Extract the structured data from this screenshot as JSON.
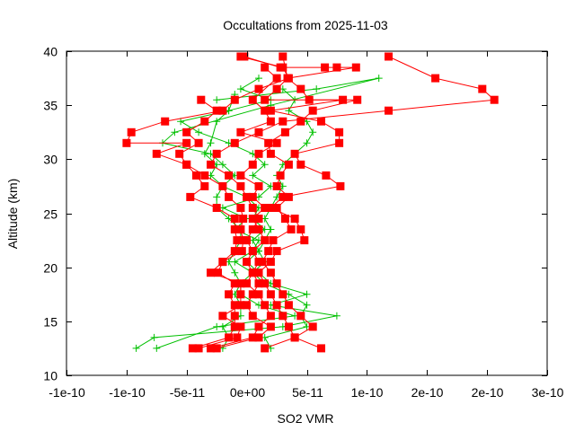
{
  "chart_data": {
    "type": "line",
    "title": "Occultations from 2025-11-03",
    "xlabel": "SO2 VMR",
    "ylabel": "Altitude (km)",
    "xlim": [
      -1.5e-10,
      2.5e-10
    ],
    "ylim": [
      10,
      40
    ],
    "x_ticks": [
      -1.5e-10,
      -1e-10,
      -5e-11,
      0,
      5e-11,
      1e-10,
      1.5e-10,
      2e-10,
      2.5e-10
    ],
    "x_tick_labels": [
      "-1e-10",
      "-1e-10",
      "-5e-11",
      "0e+00",
      "5e-11",
      "1e-10",
      "2e-10",
      "2e-10",
      "3e-10"
    ],
    "y_ticks": [
      10,
      15,
      20,
      25,
      30,
      35,
      40
    ],
    "y_tick_labels": [
      "10",
      "15",
      "20",
      "25",
      "30",
      "35",
      "40"
    ],
    "grid": false,
    "legend": null,
    "series": [
      {
        "name": "profile-red-1",
        "color": "#ff0000",
        "marker": "square",
        "points": [
          [
            1.18e-10,
            39.5
          ],
          [
            1.57e-10,
            37.5
          ],
          [
            1.96e-10,
            36.5
          ],
          [
            2.06e-10,
            35.5
          ],
          [
            1.18e-10,
            34.5
          ],
          [
            3e-11,
            33.5
          ],
          [
            1e-11,
            32.5
          ],
          [
            -1e-11,
            31.5
          ],
          [
            -2.5e-11,
            30.5
          ],
          [
            -3e-11,
            29.5
          ],
          [
            -1.5e-11,
            28.5
          ],
          [
            -5e-12,
            27.5
          ],
          [
            0,
            26.5
          ],
          [
            5e-12,
            25.5
          ],
          [
            1e-11,
            24.5
          ],
          [
            5e-12,
            23.5
          ],
          [
            0,
            22.5
          ],
          [
            5e-12,
            21.5
          ],
          [
            1e-11,
            20.5
          ],
          [
            5e-12,
            19.5
          ],
          [
            0,
            18.5
          ],
          [
            1e-11,
            17.5
          ],
          [
            1.5e-11,
            16.5
          ],
          [
            2e-11,
            15.5
          ],
          [
            1e-11,
            14.5
          ],
          [
            5e-12,
            13.5
          ],
          [
            -3e-11,
            12.5
          ]
        ]
      },
      {
        "name": "profile-red-2",
        "color": "#ff0000",
        "marker": "square",
        "points": [
          [
            -2e-12,
            39.5
          ],
          [
            2.8e-11,
            38.5
          ],
          [
            6.5e-11,
            38.5
          ],
          [
            7.5e-11,
            38.5
          ],
          [
            9.1e-11,
            38.5
          ],
          [
            3.4e-11,
            37.5
          ],
          [
            2.5e-11,
            36.5
          ],
          [
            1.5e-11,
            35.5
          ],
          [
            8e-11,
            35.5
          ],
          [
            2e-11,
            34.5
          ],
          [
            6.2e-11,
            33.5
          ],
          [
            7.7e-11,
            32.5
          ],
          [
            7.7e-11,
            31.5
          ],
          [
            4e-11,
            30.5
          ],
          [
            4.5e-11,
            29.5
          ],
          [
            6.6e-11,
            28.5
          ],
          [
            7.8e-11,
            27.5
          ],
          [
            3e-11,
            26.5
          ],
          [
            2e-11,
            25.5
          ],
          [
            4e-11,
            24.5
          ],
          [
            4.5e-11,
            23.5
          ],
          [
            4.8e-11,
            22.5
          ],
          [
            2.5e-11,
            21.5
          ],
          [
            2e-11,
            20.5
          ],
          [
            1e-11,
            19.5
          ],
          [
            1.5e-11,
            18.5
          ],
          [
            2e-11,
            17.5
          ],
          [
            2.5e-11,
            16.5
          ],
          [
            3e-11,
            15.5
          ],
          [
            3.5e-11,
            14.5
          ],
          [
            4e-11,
            13.5
          ],
          [
            6.2e-11,
            12.5
          ]
        ]
      },
      {
        "name": "profile-red-3",
        "color": "#ff0000",
        "marker": "square",
        "points": [
          [
            -5e-12,
            39.5
          ],
          [
            3e-11,
            38.5
          ],
          [
            3.5e-11,
            37.5
          ],
          [
            1e-11,
            36.5
          ],
          [
            -1e-11,
            35.5
          ],
          [
            -2e-11,
            34.5
          ],
          [
            -6.8e-11,
            33.5
          ],
          [
            -9.6e-11,
            32.5
          ],
          [
            -1e-10,
            31.5
          ],
          [
            -5e-11,
            31.5
          ],
          [
            -7.5e-11,
            30.5
          ],
          [
            -5e-11,
            29.5
          ],
          [
            -4.2e-11,
            28.5
          ],
          [
            -3.5e-11,
            27.5
          ],
          [
            -4.7e-11,
            26.5
          ],
          [
            -2.5e-11,
            25.5
          ],
          [
            -1e-11,
            24.5
          ],
          [
            -1e-11,
            23.5
          ],
          [
            -8e-12,
            22.5
          ],
          [
            -1e-11,
            21.5
          ],
          [
            -2e-11,
            20.5
          ],
          [
            -2.4e-11,
            19.5
          ],
          [
            -1e-11,
            18.5
          ],
          [
            -1.5e-11,
            17.5
          ],
          [
            -1e-11,
            16.5
          ],
          [
            -1e-11,
            15.5
          ],
          [
            -1e-11,
            14.5
          ],
          [
            -1.5e-11,
            13.5
          ],
          [
            -4.5e-11,
            12.5
          ]
        ]
      },
      {
        "name": "profile-red-4",
        "color": "#ff0000",
        "marker": "square",
        "points": [
          [
            3e-11,
            39.5
          ],
          [
            3.4e-11,
            37.5
          ],
          [
            4.5e-11,
            36.5
          ],
          [
            5.2e-11,
            35.5
          ],
          [
            9.2e-11,
            35.5
          ],
          [
            5.5e-11,
            34.5
          ],
          [
            4.5e-11,
            33.5
          ],
          [
            3.2e-11,
            32.5
          ],
          [
            1.8e-11,
            31.5
          ],
          [
            2e-11,
            30.5
          ],
          [
            3.5e-11,
            29.5
          ],
          [
            2.8e-11,
            28.5
          ],
          [
            2.5e-11,
            27.5
          ],
          [
            3.5e-11,
            26.5
          ],
          [
            2.5e-11,
            25.5
          ],
          [
            3.2e-11,
            24.5
          ],
          [
            3.7e-11,
            23.5
          ],
          [
            2.2e-11,
            22.5
          ],
          [
            1.8e-11,
            21.5
          ],
          [
            1.3e-11,
            20.5
          ],
          [
            2e-11,
            19.5
          ],
          [
            2.5e-11,
            18.5
          ],
          [
            3e-11,
            17.5
          ],
          [
            3.5e-11,
            16.5
          ],
          [
            4.5e-11,
            15.5
          ],
          [
            5.5e-11,
            14.5
          ],
          [
            4e-11,
            13.5
          ],
          [
            1.5e-11,
            12.5
          ]
        ]
      },
      {
        "name": "profile-red-5",
        "color": "#ff0000",
        "marker": "square",
        "points": [
          [
            -3.8e-11,
            35.5
          ],
          [
            -2.5e-11,
            34.5
          ],
          [
            -3.5e-11,
            33.5
          ],
          [
            -5e-11,
            32.5
          ],
          [
            -4e-11,
            31.5
          ],
          [
            -5.6e-11,
            30.5
          ],
          [
            -5e-11,
            29.5
          ],
          [
            -3.5e-11,
            28.5
          ],
          [
            -2e-11,
            27.5
          ],
          [
            -1.5e-11,
            26.5
          ],
          [
            -5e-12,
            25.5
          ],
          [
            -3e-12,
            24.5
          ],
          [
            -5e-12,
            23.5
          ],
          [
            -3e-12,
            22.5
          ],
          [
            -4e-12,
            21.5
          ],
          [
            -2e-11,
            20.5
          ],
          [
            -3e-11,
            19.5
          ],
          [
            -5e-12,
            18.5
          ],
          [
            -5e-12,
            17.5
          ],
          [
            -5e-12,
            16.5
          ],
          [
            -2e-11,
            15.5
          ],
          [
            -5e-12,
            14.5
          ],
          [
            -8e-12,
            13.5
          ],
          [
            -4e-11,
            12.5
          ]
        ]
      },
      {
        "name": "profile-red-6",
        "color": "#ff0000",
        "marker": "square",
        "points": [
          [
            1.5e-11,
            38.5
          ],
          [
            2.5e-11,
            37.5
          ],
          [
            5e-12,
            35.5
          ],
          [
            1.5e-11,
            34.5
          ],
          [
            2e-11,
            33.5
          ],
          [
            -5e-12,
            32.5
          ],
          [
            2.5e-11,
            31.5
          ],
          [
            1e-11,
            30.5
          ],
          [
            5e-12,
            29.5
          ],
          [
            -5e-12,
            28.5
          ],
          [
            1e-11,
            27.5
          ],
          [
            5e-12,
            26.5
          ],
          [
            1.5e-11,
            25.5
          ],
          [
            5e-12,
            24.5
          ],
          [
            1e-11,
            23.5
          ],
          [
            1.5e-11,
            22.5
          ],
          [
            5e-12,
            21.5
          ],
          [
            0,
            20.5
          ],
          [
            5e-12,
            19.5
          ],
          [
            1e-11,
            18.5
          ],
          [
            5e-12,
            17.5
          ],
          [
            0,
            16.5
          ],
          [
            5e-12,
            15.5
          ],
          [
            2e-11,
            14.5
          ],
          [
            1e-11,
            13.5
          ],
          [
            -2.5e-11,
            12.5
          ]
        ]
      },
      {
        "name": "profile-green-1",
        "color": "#00c000",
        "marker": "plus",
        "points": [
          [
            -2.5e-11,
            35.5
          ],
          [
            5.8e-11,
            36.5
          ],
          [
            1.1e-10,
            37.5
          ],
          [
            2e-11,
            35.0
          ],
          [
            -6e-11,
            32.5
          ],
          [
            -7e-11,
            31.5
          ],
          [
            -3e-11,
            30.5
          ],
          [
            -2e-11,
            29.5
          ],
          [
            -1e-11,
            28.5
          ],
          [
            -2e-11,
            27.5
          ],
          [
            0,
            26.5
          ],
          [
            1e-11,
            25.5
          ],
          [
            5e-12,
            24.5
          ],
          [
            1.5e-11,
            23.5
          ],
          [
            5e-12,
            22.5
          ],
          [
            1e-11,
            21.5
          ],
          [
            0,
            20.5
          ],
          [
            1e-11,
            19.5
          ],
          [
            2e-11,
            18.5
          ],
          [
            5e-11,
            17.5
          ],
          [
            2e-11,
            16.5
          ],
          [
            7.5e-11,
            15.5
          ],
          [
            3e-11,
            14.5
          ],
          [
            -7.7e-11,
            13.5
          ],
          [
            -9.2e-11,
            12.5
          ]
        ]
      },
      {
        "name": "profile-green-2",
        "color": "#00c000",
        "marker": "plus",
        "points": [
          [
            1e-11,
            37.5
          ],
          [
            -5e-12,
            36.5
          ],
          [
            2e-11,
            35.5
          ],
          [
            -1.5e-11,
            34.5
          ],
          [
            -5.5e-11,
            33.5
          ],
          [
            -4e-11,
            32.5
          ],
          [
            -1.5e-11,
            31.5
          ],
          [
            5e-12,
            30.5
          ],
          [
            1.5e-11,
            29.5
          ],
          [
            5e-12,
            28.5
          ],
          [
            2e-11,
            27.5
          ],
          [
            1e-11,
            26.5
          ],
          [
            -2e-11,
            25.5
          ],
          [
            0,
            24.5
          ],
          [
            -1e-11,
            23.5
          ],
          [
            1e-11,
            22.5
          ],
          [
            5e-12,
            21.5
          ],
          [
            -1e-11,
            20.5
          ],
          [
            5e-12,
            19.5
          ],
          [
            -5e-12,
            18.5
          ],
          [
            -5e-12,
            17.5
          ],
          [
            1e-11,
            16.5
          ],
          [
            4e-11,
            15.5
          ],
          [
            -2.5e-11,
            14.5
          ],
          [
            -7.5e-11,
            12.5
          ]
        ]
      },
      {
        "name": "profile-green-3",
        "color": "#00c000",
        "marker": "plus",
        "points": [
          [
            3e-11,
            36.5
          ],
          [
            4e-11,
            35.5
          ],
          [
            3.5e-11,
            34.5
          ],
          [
            5e-11,
            33.5
          ],
          [
            5.5e-11,
            32.5
          ],
          [
            5e-11,
            31.5
          ],
          [
            4e-11,
            30.5
          ],
          [
            3e-11,
            29.5
          ],
          [
            2.5e-11,
            28.5
          ],
          [
            3e-11,
            27.5
          ],
          [
            2.5e-11,
            26.5
          ],
          [
            2e-11,
            25.5
          ],
          [
            1.5e-11,
            24.5
          ],
          [
            2e-11,
            23.5
          ],
          [
            1.5e-11,
            22.5
          ],
          [
            1e-11,
            21.5
          ],
          [
            1.5e-11,
            20.5
          ],
          [
            5e-12,
            19.5
          ],
          [
            1.5e-11,
            18.5
          ],
          [
            3.5e-11,
            17.5
          ],
          [
            5e-11,
            16.5
          ],
          [
            4.5e-11,
            15.5
          ],
          [
            5e-11,
            14.5
          ],
          [
            1.5e-11,
            13.5
          ],
          [
            2e-11,
            12.5
          ]
        ]
      },
      {
        "name": "profile-green-4",
        "color": "#00c000",
        "marker": "plus",
        "points": [
          [
            -1e-11,
            36.0
          ],
          [
            -1.5e-11,
            34.5
          ],
          [
            -2.5e-11,
            33.5
          ],
          [
            -3e-11,
            31.5
          ],
          [
            -3.5e-11,
            30.5
          ],
          [
            -2.5e-11,
            29.5
          ],
          [
            -3e-11,
            28.5
          ],
          [
            -2e-11,
            27.5
          ],
          [
            -2.5e-11,
            26.5
          ],
          [
            -2.5e-11,
            25.5
          ],
          [
            -1.5e-11,
            24.5
          ],
          [
            -5e-12,
            23.5
          ],
          [
            -5e-12,
            22.5
          ],
          [
            -1e-11,
            21.5
          ],
          [
            -1.5e-11,
            20.5
          ],
          [
            -1e-11,
            19.5
          ],
          [
            -5e-12,
            18.5
          ],
          [
            -1e-11,
            17.5
          ],
          [
            -5e-12,
            16.5
          ],
          [
            -5e-12,
            15.5
          ],
          [
            -2e-11,
            14.5
          ],
          [
            -1.5e-11,
            13.5
          ],
          [
            -2e-11,
            12.5
          ]
        ]
      }
    ]
  }
}
